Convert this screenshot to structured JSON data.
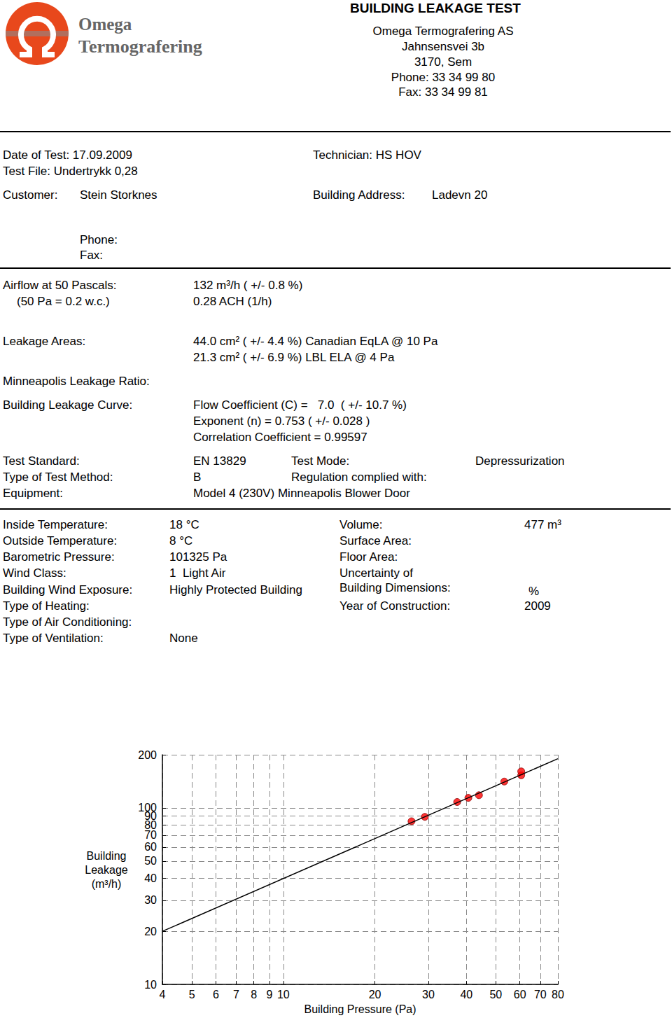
{
  "header": {
    "logo": [
      "Omega",
      "Termografering"
    ],
    "title": "BUILDING LEAKAGE TEST",
    "company": [
      "Omega Termografering AS",
      "Jahnsensvei 3b",
      "3170, Sem",
      "Phone: 33 34 99 80",
      "Fax: 33 34 99 81"
    ]
  },
  "test_info": [
    "Date of Test: 17.09.2009",
    "Technician: HS HOV",
    "Test File: Undertrykk 0,28",
    "Customer:",
    "Stein Storknes",
    "Building Address:",
    "Ladevn 20",
    "Phone:",
    "Fax:"
  ],
  "results": [
    "Airflow at 50 Pascals:",
    "132 m³/h ( +/- 0.8 %)",
    "(50 Pa = 0.2 w.c.)",
    "0.28 ACH (1/h)",
    "Leakage Areas:",
    "44.0 cm² ( +/- 4.4 %) Canadian EqLA @ 10 Pa",
    "21.3 cm² ( +/- 6.9 %) LBL ELA @ 4 Pa",
    "Minneapolis Leakage Ratio:",
    "Building Leakage Curve:",
    "Flow Coefficient (C) =   7.0  ( +/- 10.7 %)",
    "Exponent (n) = 0.753 ( +/- 0.028 )",
    "Correlation Coefficient = 0.99597"
  ],
  "test_setup": [
    "Test Standard:",
    "EN 13829",
    "Test Mode:",
    "Depressurization",
    "Type of Test Method:",
    "B",
    "Regulation complied with:",
    "Equipment:",
    "Model 4 (230V) Minneapolis Blower Door"
  ],
  "building": [
    "Inside Temperature:",
    "18 °C",
    "Volume:",
    "477 m³",
    "Outside Temperature:",
    "8 °C",
    "Surface Area:",
    "Barometric Pressure:",
    "101325 Pa",
    "Floor Area:",
    "Wind Class:",
    "1  Light Air",
    "Uncertainty of",
    "Building Wind Exposure:",
    "Highly Protected Building",
    "Building Dimensions:",
    "%",
    "Type of Heating:",
    "Year of Construction:",
    "2009",
    "Type of Air Conditioning:",
    "Type of Ventilation:",
    "None"
  ],
  "chart_data": {
    "type": "scatter",
    "xlabel": "Building Pressure (Pa)",
    "ylabel": "Building Leakage (m³/h)",
    "log": true,
    "grid": true,
    "xlim": [
      4,
      80
    ],
    "ylim": [
      10,
      200
    ],
    "xticks": [
      4,
      5,
      6,
      7,
      8,
      9,
      10,
      20,
      30,
      40,
      50,
      60,
      70,
      80
    ],
    "yticks": [
      10,
      20,
      30,
      40,
      50,
      60,
      70,
      80,
      90,
      100,
      200
    ],
    "series": [
      {
        "type": "line",
        "color": "#000000",
        "line_style": "solid",
        "x": [
          4,
          80
        ],
        "values": [
          20,
          190
        ]
      },
      {
        "type": "scatter",
        "color": "#ff0000",
        "marker": "circle",
        "x": [
          26.4,
          29.2,
          37.3,
          40.6,
          44,
          53.3,
          60.6,
          60.6
        ],
        "values": [
          84,
          89,
          108,
          114,
          118,
          141,
          153,
          161
        ]
      }
    ]
  }
}
